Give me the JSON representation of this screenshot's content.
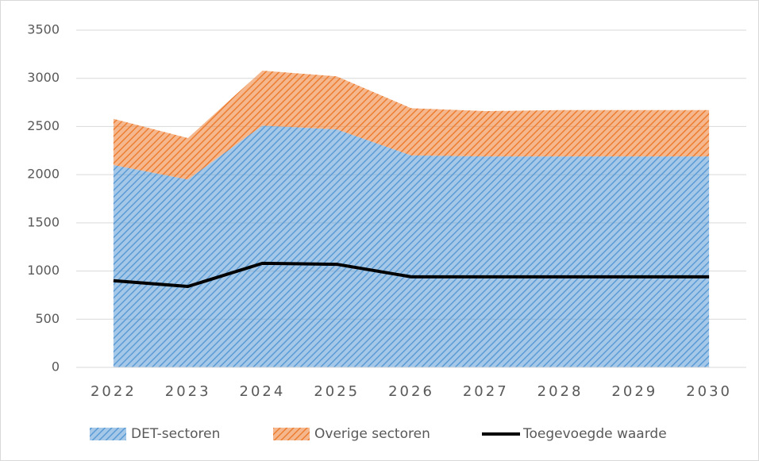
{
  "chart_data": {
    "type": "stacked_area_line",
    "categories": [
      "2022",
      "2023",
      "2024",
      "2025",
      "2026",
      "2027",
      "2028",
      "2029",
      "2030"
    ],
    "series": [
      {
        "name": "DET-sectoren",
        "color": "#5b9bd5",
        "type": "area",
        "values": [
          2100,
          1950,
          2510,
          2470,
          2200,
          2190,
          2190,
          2190,
          2190
        ]
      },
      {
        "name": "Overige sectoren",
        "color": "#ed7d31",
        "type": "area",
        "values": [
          480,
          430,
          570,
          550,
          490,
          470,
          480,
          480,
          480
        ]
      },
      {
        "name": "Toegevoegde waarde",
        "color": "#000000",
        "type": "line",
        "values": [
          900,
          840,
          1080,
          1070,
          940,
          940,
          940,
          940,
          940
        ]
      }
    ],
    "ylim": [
      0,
      3500
    ],
    "yticks": [
      0,
      500,
      1000,
      1500,
      2000,
      2500,
      3000,
      3500
    ],
    "grid": true,
    "legend": "bottom"
  }
}
